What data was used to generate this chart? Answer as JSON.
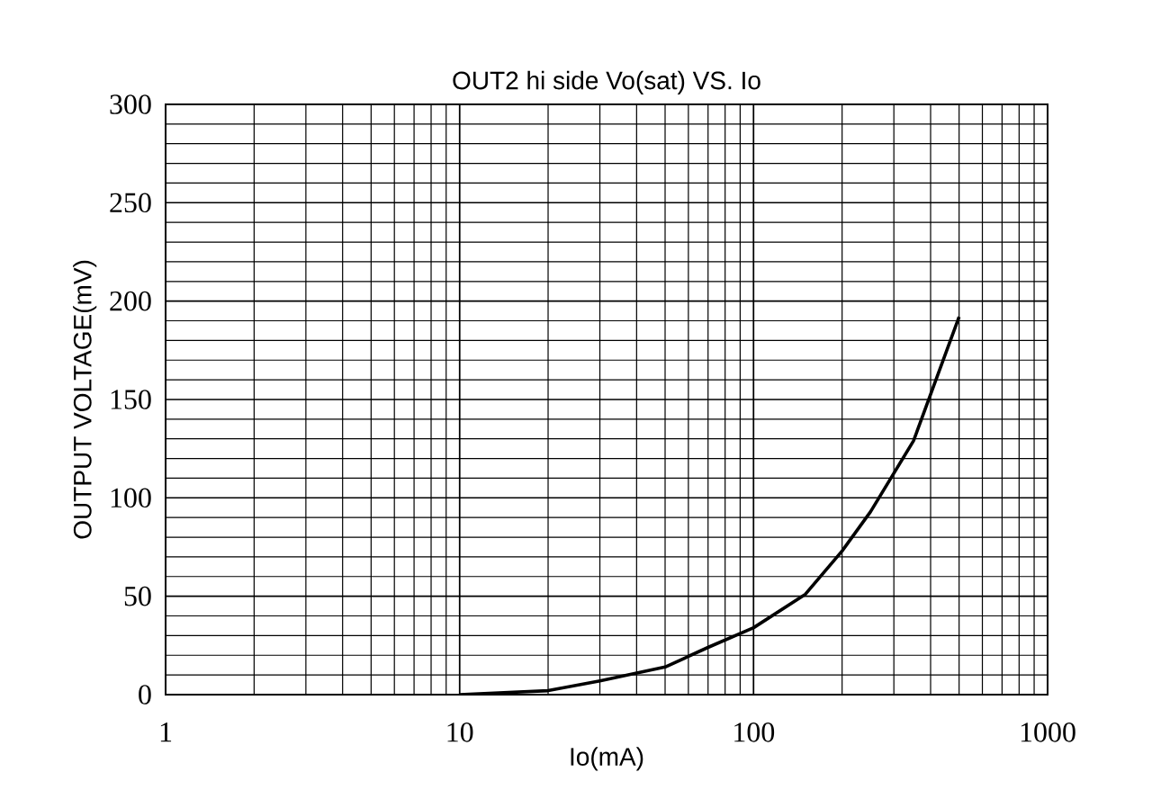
{
  "chart_data": {
    "type": "line",
    "title": "OUT2 hi side  Vo(sat) VS. Io",
    "xlabel": "Io(mA)",
    "ylabel": "OUTPUT VOLTAGE(mV)",
    "log": "x",
    "grid": true,
    "marker": "none",
    "line_style": "solid",
    "xlim": [
      1,
      1000
    ],
    "xticks": [
      1,
      10,
      100,
      1000
    ],
    "ylim": [
      0,
      300
    ],
    "yticks": [
      0,
      50,
      100,
      150,
      200,
      250,
      300
    ],
    "x": [
      10,
      20,
      30,
      50,
      70,
      100,
      150,
      200,
      250,
      350,
      500
    ],
    "series": [
      {
        "color": "#000000",
        "values": [
          0,
          2,
          7,
          14,
          24,
          34,
          51,
          73,
          93,
          129,
          192
        ]
      }
    ]
  }
}
